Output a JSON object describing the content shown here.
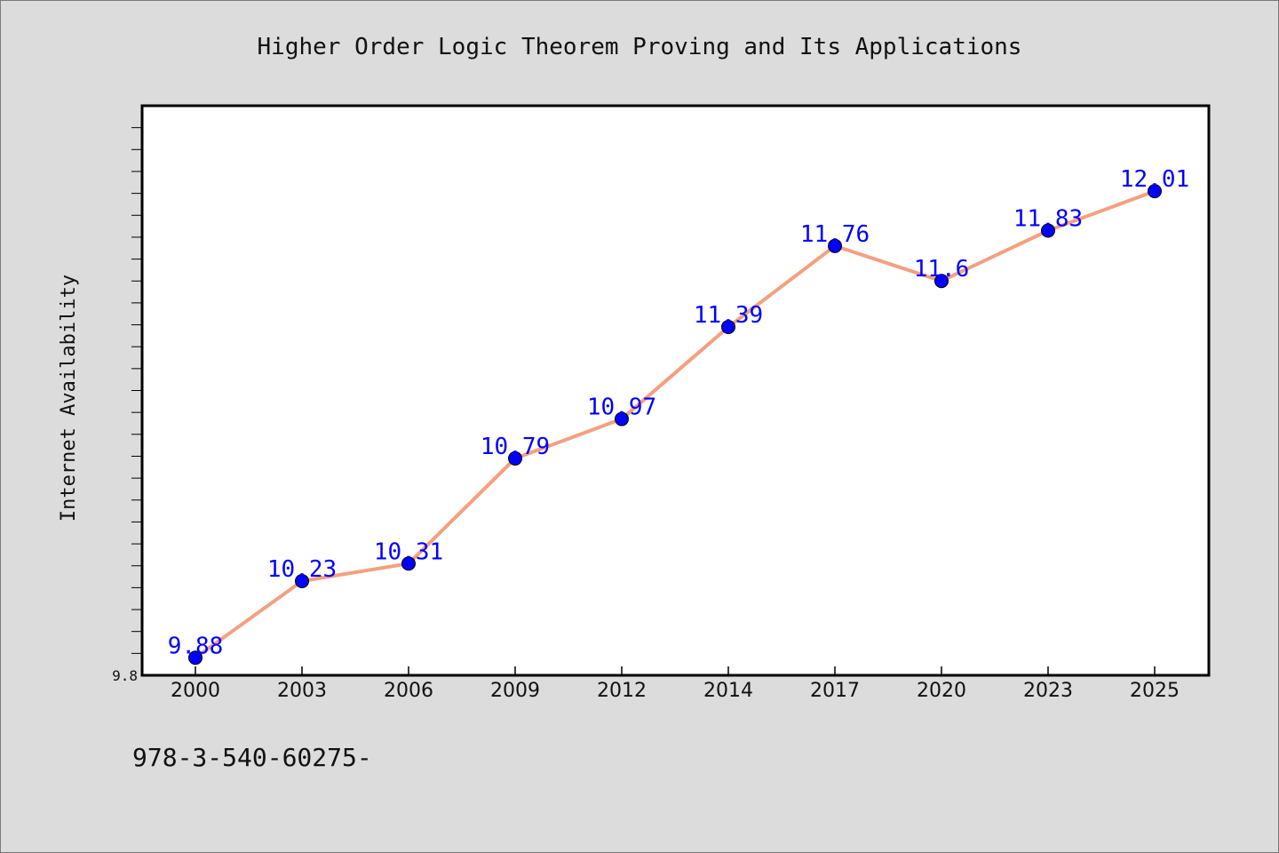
{
  "chart_data": {
    "type": "line",
    "title": "Higher Order Logic Theorem Proving and Its Applications",
    "xlabel": "",
    "ylabel": "Internet Availability",
    "categories": [
      "2000",
      "2003",
      "2006",
      "2009",
      "2012",
      "2014",
      "2017",
      "2020",
      "2023",
      "2025"
    ],
    "series": [
      {
        "values": [
          9.88,
          10.23,
          10.31,
          10.79,
          10.97,
          11.39,
          11.76,
          11.6,
          11.83,
          12.01
        ],
        "data_labels": [
          "9.88",
          "10.23",
          "10.31",
          "10.79",
          "10.97",
          "11.39",
          "11.76",
          "11.6",
          "11.83",
          "12.01"
        ]
      }
    ],
    "ylim": [
      9.8,
      12.4
    ],
    "yticks_labeled": [
      "9.8"
    ],
    "grid": false,
    "legend": "none",
    "colors": {
      "line": "#f4a07f",
      "marker": "#0000ff",
      "data_label": "#0000ff",
      "plot_background": "#ffffff",
      "page_background": "#dcdcdc"
    }
  },
  "footer": {
    "text": "978-3-540-60275-"
  }
}
